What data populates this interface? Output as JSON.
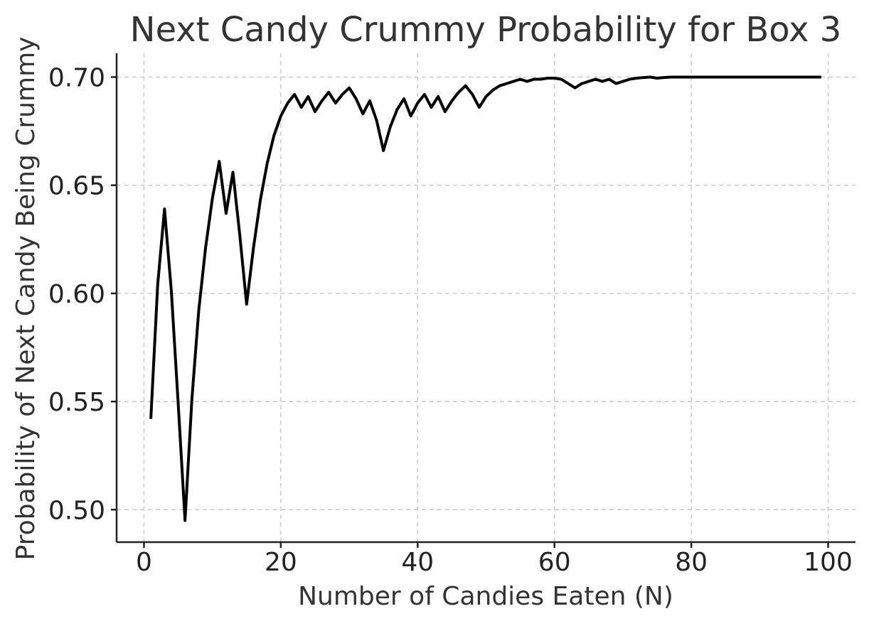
{
  "chart_data": {
    "type": "line",
    "title": "Next Candy Crummy Probability for Box 3",
    "xlabel": "Number of Candies Eaten (N)",
    "ylabel": "Probability of Next Candy Being Crummy",
    "xlim": [
      -4,
      104
    ],
    "ylim": [
      0.485,
      0.711
    ],
    "xticks": [
      0,
      20,
      40,
      60,
      80,
      100
    ],
    "xtick_labels": [
      "0",
      "20",
      "40",
      "60",
      "80",
      "100"
    ],
    "yticks": [
      0.5,
      0.55,
      0.6,
      0.65,
      0.7
    ],
    "ytick_labels": [
      "0.50",
      "0.55",
      "0.60",
      "0.65",
      "0.70"
    ],
    "grid": true,
    "legend": "none",
    "series": [
      {
        "color": "#000000",
        "x": [
          1,
          2,
          3,
          4,
          5,
          6,
          7,
          8,
          9,
          10,
          11,
          12,
          13,
          14,
          15,
          16,
          17,
          18,
          19,
          20,
          21,
          22,
          23,
          24,
          25,
          26,
          27,
          28,
          29,
          30,
          31,
          32,
          33,
          34,
          35,
          36,
          37,
          38,
          39,
          40,
          41,
          42,
          43,
          44,
          45,
          46,
          47,
          48,
          49,
          50,
          51,
          52,
          53,
          54,
          55,
          56,
          57,
          58,
          59,
          60,
          61,
          62,
          63,
          64,
          65,
          66,
          67,
          68,
          69,
          70,
          71,
          72,
          73,
          74,
          75,
          76,
          77,
          78,
          79,
          80,
          81,
          82,
          83,
          84,
          85,
          86,
          87,
          88,
          89,
          90,
          91,
          92,
          93,
          94,
          95,
          96,
          97,
          98,
          99
        ],
        "values": [
          0.542,
          0.604,
          0.639,
          0.601,
          0.549,
          0.495,
          0.551,
          0.592,
          0.621,
          0.644,
          0.661,
          0.637,
          0.656,
          0.627,
          0.595,
          0.621,
          0.643,
          0.66,
          0.673,
          0.682,
          0.688,
          0.692,
          0.686,
          0.691,
          0.684,
          0.689,
          0.693,
          0.688,
          0.692,
          0.695,
          0.69,
          0.683,
          0.689,
          0.68,
          0.666,
          0.677,
          0.685,
          0.69,
          0.682,
          0.688,
          0.692,
          0.686,
          0.691,
          0.684,
          0.689,
          0.693,
          0.696,
          0.692,
          0.686,
          0.691,
          0.694,
          0.696,
          0.697,
          0.698,
          0.699,
          0.698,
          0.699,
          0.699,
          0.6995,
          0.6995,
          0.699,
          0.697,
          0.695,
          0.697,
          0.698,
          0.699,
          0.698,
          0.699,
          0.697,
          0.698,
          0.699,
          0.6995,
          0.6998,
          0.7,
          0.6995,
          0.6998,
          0.7,
          0.7,
          0.7,
          0.7,
          0.7,
          0.7,
          0.7,
          0.7,
          0.7,
          0.7,
          0.7,
          0.7,
          0.7,
          0.7,
          0.7,
          0.7,
          0.7,
          0.7,
          0.7,
          0.7,
          0.7,
          0.7,
          0.7
        ]
      }
    ]
  }
}
